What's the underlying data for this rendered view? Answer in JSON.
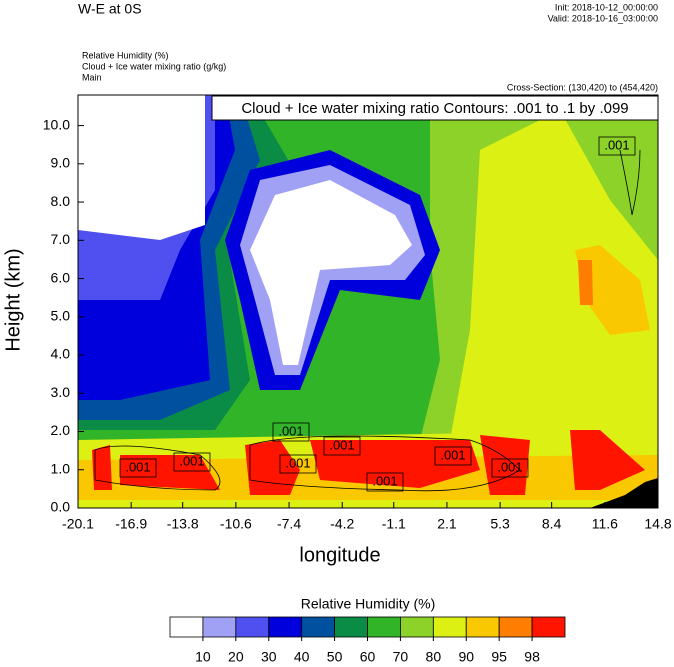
{
  "header": {
    "left_title": "W-E at 0S",
    "init": "Init: 2018-10-12_00:00:00",
    "valid": "Valid: 2018-10-16_03:00:00"
  },
  "chart_data": {
    "type": "contour",
    "fields": [
      "Relative Humidity   (%)",
      "Cloud + Ice water mixing ratio   (g/kg)",
      "Main"
    ],
    "cross_section": "Cross-Section: (130,420) to (454,420)",
    "contour_title": "Cloud + Ice water mixing ratio Contours: .001 to .1 by .099",
    "contour_labels": [
      ".001",
      ".001",
      ".001",
      ".001",
      ".001",
      ".001",
      ".001",
      ".001",
      ".001"
    ],
    "x_label": "longitude",
    "y_label": "Height (km)",
    "xlim": [
      -20.1,
      14.8
    ],
    "xticks": [
      -20.1,
      -16.9,
      -13.8,
      -10.6,
      -7.4,
      -4.2,
      -1.1,
      2.1,
      5.3,
      8.4,
      11.6,
      14.8
    ],
    "ylim": [
      0,
      10.8
    ],
    "yticks": [
      {
        "value": 0,
        "label": "0.0"
      },
      {
        "value": 1,
        "label": "1.0"
      },
      {
        "value": 2,
        "label": "2.0"
      },
      {
        "value": 3,
        "label": "3.0"
      },
      {
        "value": 4,
        "label": "4.0"
      },
      {
        "value": 5,
        "label": "5.0"
      },
      {
        "value": 6,
        "label": "6.0"
      },
      {
        "value": 7,
        "label": "7.0"
      },
      {
        "value": 8,
        "label": "8.0"
      },
      {
        "value": 9,
        "label": "9.0"
      },
      {
        "value": 10,
        "label": "10.0"
      }
    ],
    "colorbar": {
      "title": "Relative Humidity  (%)",
      "levels": [
        10,
        20,
        30,
        40,
        50,
        60,
        70,
        80,
        90,
        95,
        98
      ],
      "colors": [
        "#ffffff",
        "#a0a0f5",
        "#5050f0",
        "#0000dc",
        "#0050a0",
        "#0a8c46",
        "#32b428",
        "#8cd228",
        "#dcf014",
        "#fac800",
        "#ff7d00",
        "#ff1400"
      ]
    }
  }
}
